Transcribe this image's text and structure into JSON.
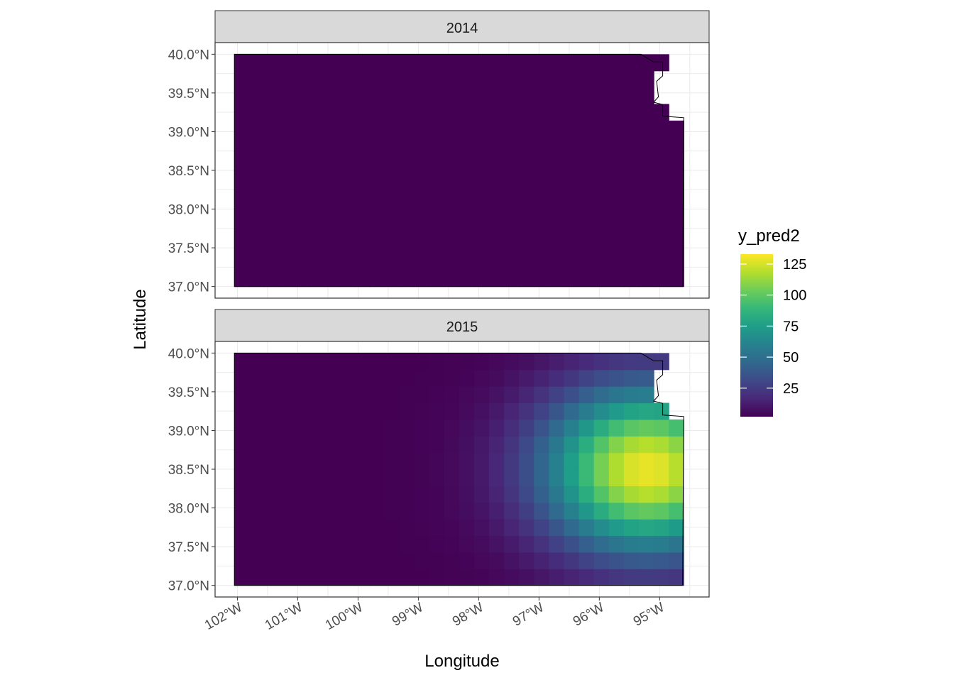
{
  "chart_data": {
    "type": "heatmap",
    "facet_by": "year",
    "panels": [
      {
        "strip": "2014",
        "description_of_values": "uniform minimum",
        "grid_function": "constant",
        "constant_value": 2
      },
      {
        "strip": "2015",
        "grid_function": "gaussian_peak",
        "peak": {
          "lon": -95.2,
          "lat": 38.5,
          "value": 130,
          "sigma_lon": 1.2,
          "sigma_lat": 0.75
        }
      }
    ],
    "xlabel": "Longitude",
    "ylabel": "Latitude",
    "x_ticks": [
      "102°W",
      "101°W",
      "100°W",
      "99°W",
      "98°W",
      "97°W",
      "96°W",
      "95°W"
    ],
    "x_tick_values": [
      -102,
      -101,
      -100,
      -99,
      -98,
      -97,
      -96,
      -95
    ],
    "y_ticks": [
      "40.0°N",
      "39.5°N",
      "39.0°N",
      "38.5°N",
      "38.0°N",
      "37.5°N",
      "37.0°N"
    ],
    "y_tick_values": [
      40.0,
      39.5,
      39.0,
      38.5,
      38.0,
      37.5,
      37.0
    ],
    "xlim": [
      -102.37,
      -94.18
    ],
    "ylim": [
      36.85,
      40.15
    ],
    "region_lon": [
      -102.05,
      -94.6
    ],
    "region_lat": [
      37.0,
      40.0
    ],
    "grid": true,
    "legend": {
      "title": "y_pred2",
      "placement": "right",
      "range": [
        2,
        133
      ],
      "ticks": [
        25,
        50,
        75,
        100,
        125
      ],
      "tick_labels": [
        "25",
        "50",
        "75",
        "100",
        "125"
      ]
    },
    "palette": [
      "#440154",
      "#482878",
      "#3E4A89",
      "#31688E",
      "#26828E",
      "#1F9E89",
      "#35B779",
      "#6DCD59",
      "#B4DE2C",
      "#FDE725"
    ]
  }
}
